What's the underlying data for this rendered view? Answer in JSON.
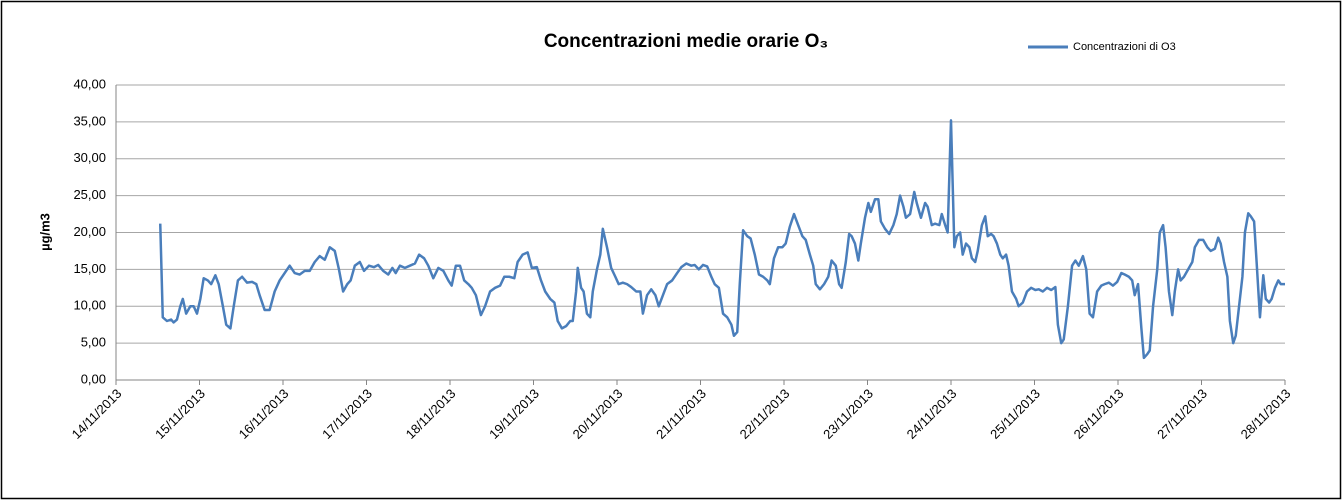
{
  "chart_data": {
    "type": "line",
    "title": "Concentrazioni medie orarie O₃",
    "ylabel": "µg/m3",
    "legend": "top-right",
    "grid": true,
    "ylim": [
      0,
      40
    ],
    "yticks": [
      {
        "value": 0,
        "label": "0,00"
      },
      {
        "value": 5,
        "label": "5,00"
      },
      {
        "value": 10,
        "label": "10,00"
      },
      {
        "value": 15,
        "label": "15,00"
      },
      {
        "value": 20,
        "label": "20,00"
      },
      {
        "value": 25,
        "label": "25,00"
      },
      {
        "value": 30,
        "label": "30,00"
      },
      {
        "value": 35,
        "label": "35,00"
      },
      {
        "value": 40,
        "label": "40,00"
      }
    ],
    "xlim": [
      41592,
      41606
    ],
    "xticks": [
      {
        "value": 41592,
        "label": "14/11/2013"
      },
      {
        "value": 41593,
        "label": "15/11/2013"
      },
      {
        "value": 41594,
        "label": "16/11/2013"
      },
      {
        "value": 41595,
        "label": "17/11/2013"
      },
      {
        "value": 41596,
        "label": "18/11/2013"
      },
      {
        "value": 41597,
        "label": "19/11/2013"
      },
      {
        "value": 41598,
        "label": "20/11/2013"
      },
      {
        "value": 41599,
        "label": "21/11/2013"
      },
      {
        "value": 41600,
        "label": "22/11/2013"
      },
      {
        "value": 41601,
        "label": "23/11/2013"
      },
      {
        "value": 41602,
        "label": "24/11/2013"
      },
      {
        "value": 41603,
        "label": "25/11/2013"
      },
      {
        "value": 41604,
        "label": "26/11/2013"
      },
      {
        "value": 41605,
        "label": "27/11/2013"
      },
      {
        "value": 41606,
        "label": "28/11/2013"
      }
    ],
    "x": [
      41592.53,
      41592.56,
      41592.61,
      41592.66,
      41592.69,
      41592.73,
      41592.77,
      41592.8,
      41592.84,
      41592.89,
      41592.93,
      41592.97,
      41593.01,
      41593.05,
      41593.1,
      41593.14,
      41593.19,
      41593.23,
      41593.28,
      41593.32,
      41593.37,
      41593.41,
      41593.46,
      41593.51,
      41593.57,
      41593.63,
      41593.68,
      41593.72,
      41593.78,
      41593.84,
      41593.9,
      41593.96,
      41594.02,
      41594.08,
      41594.14,
      41594.2,
      41594.26,
      41594.32,
      41594.38,
      41594.44,
      41594.5,
      41594.56,
      41594.62,
      41594.67,
      41594.72,
      41594.77,
      41594.81,
      41594.86,
      41594.92,
      41594.97,
      41595.03,
      41595.09,
      41595.14,
      41595.2,
      41595.26,
      41595.31,
      41595.35,
      41595.4,
      41595.46,
      41595.52,
      41595.58,
      41595.63,
      41595.69,
      41595.74,
      41595.8,
      41595.86,
      41595.92,
      41595.98,
      41596.02,
      41596.07,
      41596.12,
      41596.17,
      41596.22,
      41596.26,
      41596.31,
      41596.37,
      41596.42,
      41596.48,
      41596.54,
      41596.6,
      41596.65,
      41596.71,
      41596.77,
      41596.81,
      41596.87,
      41596.93,
      41596.98,
      41597.04,
      41597.09,
      41597.14,
      41597.2,
      41597.25,
      41597.29,
      41597.34,
      41597.39,
      41597.44,
      41597.47,
      41597.51,
      41597.53,
      41597.57,
      41597.6,
      41597.64,
      41597.68,
      41597.71,
      41597.76,
      41597.8,
      41597.83,
      41597.88,
      41597.93,
      41597.98,
      41598.02,
      41598.07,
      41598.12,
      41598.17,
      41598.23,
      41598.28,
      41598.31,
      41598.36,
      41598.41,
      41598.46,
      41598.5,
      41598.55,
      41598.6,
      41598.66,
      41598.72,
      41598.77,
      41598.83,
      41598.89,
      41598.93,
      41598.98,
      41599.03,
      41599.08,
      41599.13,
      41599.17,
      41599.22,
      41599.27,
      41599.32,
      41599.37,
      41599.4,
      41599.44,
      41599.47,
      41599.51,
      41599.56,
      41599.6,
      41599.65,
      41599.7,
      41599.75,
      41599.8,
      41599.83,
      41599.88,
      41599.93,
      41599.98,
      41600.02,
      41600.07,
      41600.12,
      41600.17,
      41600.22,
      41600.26,
      41600.31,
      41600.35,
      41600.38,
      41600.43,
      41600.48,
      41600.53,
      41600.57,
      41600.62,
      41600.66,
      41600.69,
      41600.74,
      41600.78,
      41600.81,
      41600.85,
      41600.89,
      41600.92,
      41600.97,
      41601.01,
      41601.04,
      41601.09,
      41601.13,
      41601.16,
      41601.21,
      41601.26,
      41601.31,
      41601.35,
      41601.39,
      41601.43,
      41601.46,
      41601.51,
      41601.56,
      41601.59,
      41601.64,
      41601.69,
      41601.72,
      41601.77,
      41601.81,
      41601.86,
      41601.89,
      41601.93,
      41601.96,
      41602.0,
      41602.04,
      41602.07,
      41602.11,
      41602.14,
      41602.18,
      41602.22,
      41602.25,
      41602.29,
      41602.32,
      41602.37,
      41602.41,
      41602.44,
      41602.48,
      41602.51,
      41602.55,
      41602.59,
      41602.62,
      41602.66,
      41602.69,
      41602.73,
      41602.78,
      41602.81,
      41602.86,
      41602.91,
      41602.96,
      41603.01,
      41603.05,
      41603.1,
      41603.15,
      41603.2,
      41603.25,
      41603.28,
      41603.32,
      41603.35,
      41603.4,
      41603.45,
      41603.49,
      41603.53,
      41603.58,
      41603.62,
      41603.66,
      41603.7,
      41603.75,
      41603.8,
      41603.84,
      41603.89,
      41603.94,
      41603.99,
      41604.04,
      41604.08,
      41604.13,
      41604.17,
      41604.2,
      41604.24,
      41604.28,
      41604.31,
      41604.35,
      41604.38,
      41604.42,
      41604.47,
      41604.5,
      41604.54,
      41604.57,
      41604.61,
      41604.65,
      41604.68,
      41604.72,
      41604.75,
      41604.79,
      41604.84,
      41604.89,
      41604.92,
      41604.97,
      41605.02,
      41605.07,
      41605.11,
      41605.16,
      41605.2,
      41605.23,
      41605.27,
      41605.31,
      41605.34,
      41605.38,
      41605.41,
      41605.45,
      41605.49,
      41605.52,
      41605.56,
      41605.59,
      41605.63,
      41605.66,
      41605.7,
      41605.74,
      41605.77,
      41605.81,
      41605.84,
      41605.88,
      41605.92,
      41605.95,
      41606.0
    ],
    "series": [
      {
        "name": "Concentrazioni di O3",
        "color": "#4a7ebb",
        "values": [
          21.2,
          8.5,
          8,
          8.2,
          7.8,
          8.2,
          10,
          11,
          9,
          10,
          10,
          9,
          11,
          13.8,
          13.5,
          13,
          14.2,
          13,
          10,
          7.5,
          7,
          10,
          13.5,
          14,
          13.2,
          13.3,
          13,
          11.5,
          9.5,
          9.5,
          12,
          13.5,
          14.5,
          15.5,
          14.5,
          14.3,
          14.8,
          14.8,
          16,
          16.8,
          16.3,
          18,
          17.5,
          15,
          12,
          13,
          13.5,
          15.5,
          16,
          14.8,
          15.5,
          15.3,
          15.6,
          14.8,
          14.3,
          15.2,
          14.5,
          15.5,
          15.2,
          15.5,
          15.8,
          17,
          16.5,
          15.5,
          13.8,
          15.2,
          14.8,
          13.5,
          12.8,
          15.5,
          15.5,
          13.5,
          13,
          12.5,
          11.5,
          8.8,
          10,
          12,
          12.5,
          12.8,
          14,
          14,
          13.8,
          16,
          17,
          17.3,
          15.2,
          15.3,
          13.5,
          12,
          11,
          10.5,
          8,
          7,
          7.3,
          8,
          8,
          12,
          15.2,
          12.5,
          12,
          9,
          8.5,
          12,
          15,
          17,
          20.5,
          18,
          15.2,
          14,
          13,
          13.2,
          13,
          12.6,
          12,
          12,
          9,
          11.5,
          12.3,
          11.5,
          10,
          11.5,
          13,
          13.5,
          14.5,
          15.3,
          15.8,
          15.5,
          15.6,
          15,
          15.6,
          15.4,
          14,
          13,
          12.5,
          9,
          8.5,
          7.5,
          6,
          6.5,
          13,
          20.3,
          19.5,
          19.2,
          17,
          14.3,
          14,
          13.5,
          13,
          16.5,
          18,
          18,
          18.5,
          20.8,
          22.5,
          21,
          19.5,
          19,
          17,
          15.5,
          13,
          12.3,
          13,
          14,
          16.2,
          15.5,
          13,
          12.5,
          16,
          19.8,
          19.5,
          18.5,
          16.2,
          18.5,
          22,
          24,
          22.8,
          24.5,
          24.5,
          21.5,
          20.5,
          19.8,
          21,
          22.5,
          25,
          23.5,
          22,
          22.5,
          25.5,
          24,
          22,
          24,
          23.5,
          21,
          21.2,
          21,
          22.5,
          21,
          20,
          35.2,
          18,
          19.5,
          20,
          17,
          18.5,
          18,
          16.5,
          16,
          17.5,
          21,
          22.2,
          19.5,
          19.8,
          19.5,
          18.5,
          17,
          16.5,
          17,
          15.5,
          12,
          11,
          10,
          10.5,
          12,
          12.5,
          12.2,
          12.3,
          12,
          12.5,
          12.2,
          12.6,
          7.5,
          5,
          5.5,
          10,
          15.5,
          16.2,
          15.5,
          16.8,
          15,
          9,
          8.5,
          12,
          12.8,
          13,
          13.2,
          12.8,
          13.3,
          14.5,
          14.3,
          14,
          13.5,
          11.5,
          13,
          7,
          3,
          3.5,
          4,
          10,
          15,
          20,
          21,
          18,
          12,
          8.8,
          12,
          15,
          13.5,
          14,
          15,
          16,
          18,
          19,
          19,
          18,
          17.5,
          17.8,
          19.3,
          18.5,
          16,
          14,
          8,
          5,
          6,
          10,
          14,
          20,
          22.6,
          22.2,
          21.5,
          16,
          8.5,
          14.2,
          11,
          10.5,
          11,
          12.5,
          13.5,
          13,
          13
        ]
      }
    ]
  }
}
